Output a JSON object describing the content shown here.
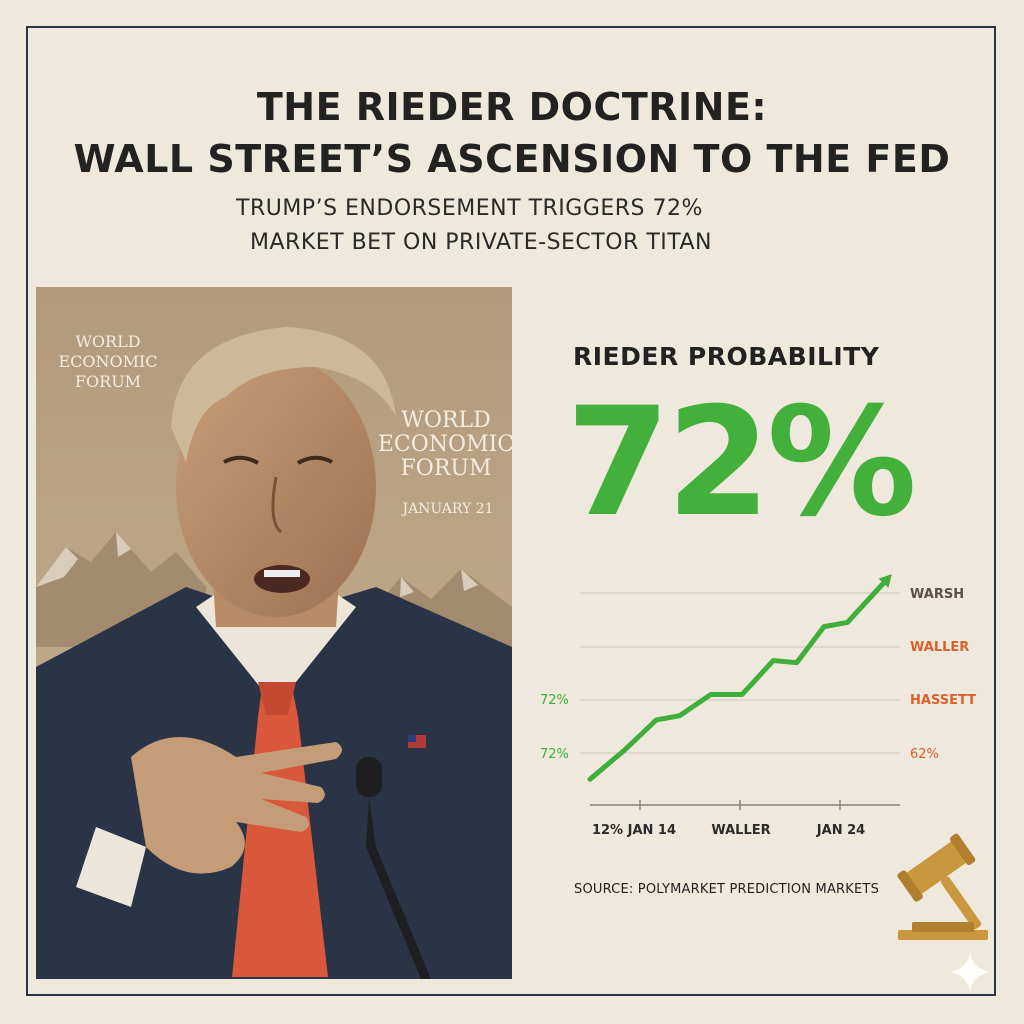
{
  "header": {
    "title_line1": "THE RIEDER DOCTRINE:",
    "title_line2": "WALL STREET’S ASCENSION TO THE FED",
    "subtitle_line1": "TRUMP’S ENDORSEMENT TRIGGERS  72%",
    "subtitle_line2": "MARKET BET ON PRIVATE-SECTOR TITAN"
  },
  "portrait": {
    "backdrop_text_1": "WORLD ECONOMIC FORUM",
    "backdrop_text_2": "WORLD ECONOMIC FORUM",
    "backdrop_date": "JANUARY 21"
  },
  "stat": {
    "label": "RIEDER PROBABILITY",
    "value": "72%"
  },
  "chart_data": {
    "type": "line",
    "points": [
      {
        "x": 0.0,
        "y": 6
      },
      {
        "x": 0.09,
        "y": 20
      },
      {
        "x": 0.17,
        "y": 34
      },
      {
        "x": 0.23,
        "y": 36
      },
      {
        "x": 0.31,
        "y": 46
      },
      {
        "x": 0.39,
        "y": 46
      },
      {
        "x": 0.47,
        "y": 62
      },
      {
        "x": 0.53,
        "y": 61
      },
      {
        "x": 0.6,
        "y": 78
      },
      {
        "x": 0.66,
        "y": 80
      },
      {
        "x": 0.76,
        "y": 100
      }
    ],
    "x_labels": [
      "12% JAN 14",
      "WALLER",
      "JAN 24"
    ],
    "y_left_labels": [
      "72%",
      "72%"
    ],
    "y_right_labels": [
      "WARSH",
      "WALLER",
      "HASSETT",
      "62%"
    ],
    "grid": true,
    "colors": {
      "line": "#3fae3a",
      "left_labels": "#3fae3a",
      "right_warsh": "#5a5043",
      "right_orange": "#d9612e"
    }
  },
  "footer": {
    "source": "SOURCE: POLYMARKET PREDICTION MARKETS"
  },
  "icons": [
    "gavel-icon",
    "sparkle-icon",
    "flag-pin-icon"
  ]
}
